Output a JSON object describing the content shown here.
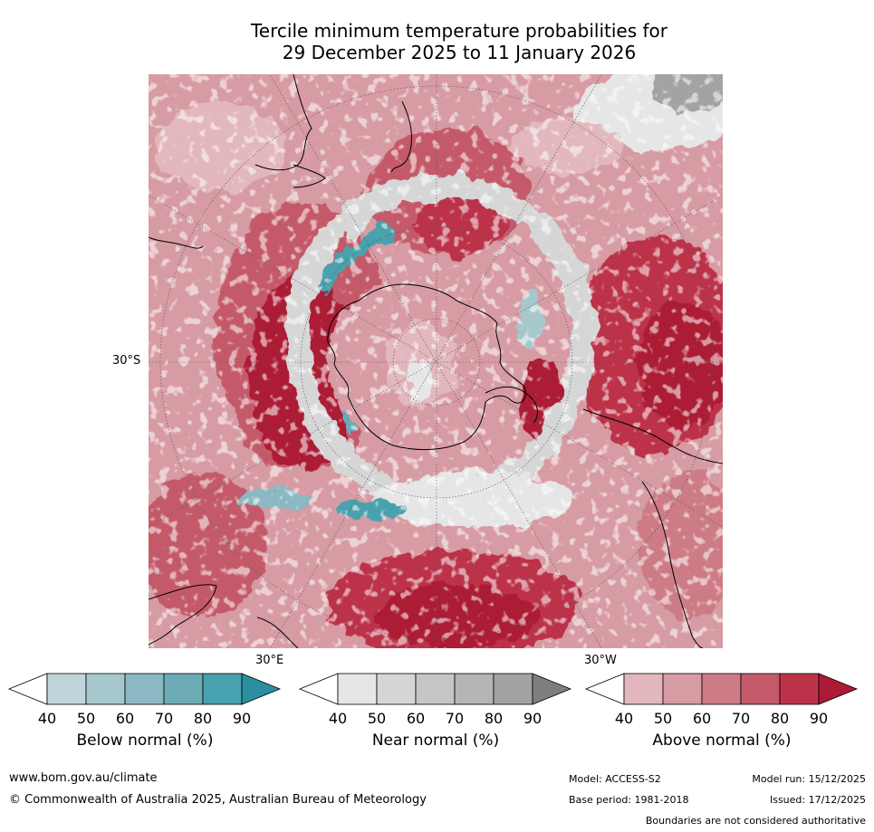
{
  "title": {
    "line1": "Tercile minimum temperature probabilities for",
    "line2": "29 December 2025 to 11 January 2026"
  },
  "map": {
    "lat_label": "30°S",
    "lon_label_left": "30°E",
    "lon_label_right": "30°W"
  },
  "colorbars": [
    {
      "label": "Below normal (%)",
      "ticks": [
        "40",
        "50",
        "60",
        "70",
        "80",
        "90"
      ],
      "colors": [
        "#ffffff",
        "#bfd5da",
        "#a6c8cd",
        "#8cb8c3",
        "#6cabb6",
        "#48a1ae",
        "#2a8fa0"
      ]
    },
    {
      "label": "Near normal (%)",
      "ticks": [
        "40",
        "50",
        "60",
        "70",
        "80",
        "90"
      ],
      "colors": [
        "#ffffff",
        "#e6e6e6",
        "#d6d6d6",
        "#c6c6c6",
        "#b5b5b5",
        "#a3a3a3",
        "#7e7e7e"
      ]
    },
    {
      "label": "Above normal (%)",
      "ticks": [
        "40",
        "50",
        "60",
        "70",
        "80",
        "90"
      ],
      "colors": [
        "#ffffff",
        "#e2b7bd",
        "#d79ba3",
        "#cd7b86",
        "#c45a69",
        "#bb3349",
        "#ac1a35"
      ]
    }
  ],
  "footer": {
    "website": "www.bom.gov.au/climate",
    "copyright": "© Commonwealth of Australia 2025, Australian Bureau of Meteorology",
    "model": "Model: ACCESS-S2",
    "model_run": "Model run: 15/12/2025",
    "base_period": "Base period: 1981-2018",
    "issued": "Issued: 17/12/2025",
    "disclaimer": "Boundaries are not considered authoritative"
  }
}
